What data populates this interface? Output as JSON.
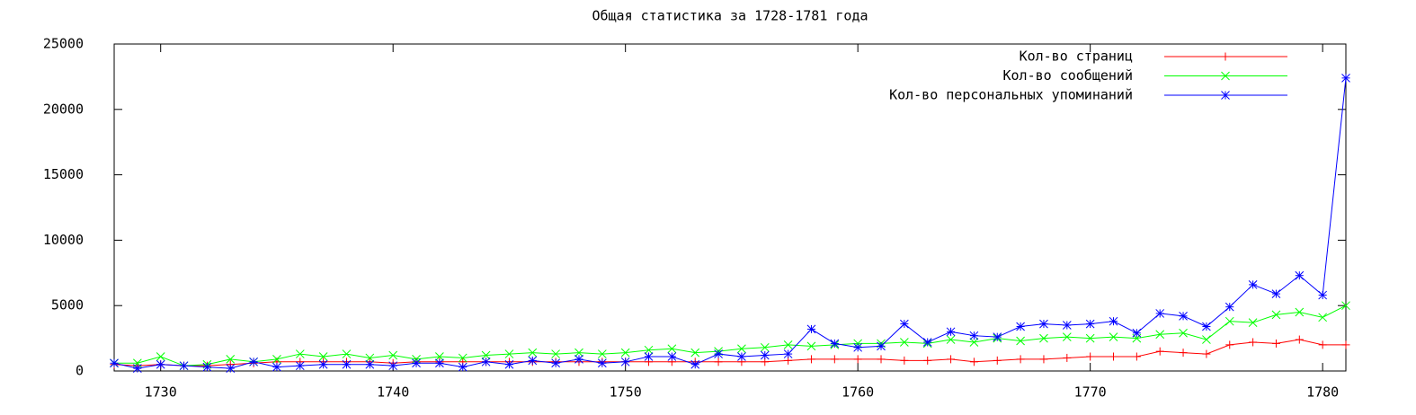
{
  "chart_data": {
    "type": "line",
    "title": "Общая статистика за 1728-1781 года",
    "x": [
      1728,
      1729,
      1730,
      1731,
      1732,
      1733,
      1734,
      1735,
      1736,
      1737,
      1738,
      1739,
      1740,
      1741,
      1742,
      1743,
      1744,
      1745,
      1746,
      1747,
      1748,
      1749,
      1750,
      1751,
      1752,
      1753,
      1754,
      1755,
      1756,
      1757,
      1758,
      1759,
      1760,
      1761,
      1762,
      1763,
      1764,
      1765,
      1766,
      1767,
      1768,
      1769,
      1770,
      1771,
      1772,
      1773,
      1774,
      1775,
      1776,
      1777,
      1778,
      1779,
      1780,
      1781
    ],
    "series": [
      {
        "name": "Кол-во страниц",
        "color": "#ff0000",
        "marker": "plus",
        "values": [
          500,
          400,
          500,
          400,
          400,
          500,
          600,
          700,
          700,
          700,
          700,
          700,
          600,
          700,
          700,
          700,
          700,
          700,
          700,
          700,
          700,
          700,
          700,
          700,
          700,
          700,
          700,
          700,
          700,
          800,
          900,
          900,
          900,
          900,
          800,
          800,
          900,
          700,
          800,
          900,
          900,
          1000,
          1100,
          1100,
          1100,
          1500,
          1400,
          1300,
          2000,
          2200,
          2100,
          2400,
          2000,
          2000
        ]
      },
      {
        "name": "Кол-во сообщений",
        "color": "#00ff00",
        "marker": "cross",
        "values": [
          600,
          600,
          1100,
          400,
          500,
          900,
          700,
          900,
          1300,
          1100,
          1300,
          1000,
          1200,
          900,
          1100,
          1000,
          1200,
          1300,
          1400,
          1300,
          1400,
          1300,
          1400,
          1600,
          1700,
          1400,
          1500,
          1700,
          1800,
          2000,
          1900,
          2000,
          2100,
          2100,
          2200,
          2100,
          2400,
          2200,
          2500,
          2300,
          2500,
          2600,
          2500,
          2600,
          2500,
          2800,
          2900,
          2400,
          3800,
          3700,
          4300,
          4500,
          4100,
          5000
        ]
      },
      {
        "name": "Кол-во персональных упоминаний",
        "color": "#0000ff",
        "marker": "star",
        "values": [
          600,
          200,
          500,
          400,
          300,
          200,
          700,
          300,
          400,
          500,
          500,
          500,
          400,
          600,
          600,
          300,
          700,
          500,
          800,
          600,
          900,
          600,
          700,
          1100,
          1100,
          500,
          1300,
          1100,
          1200,
          1300,
          3200,
          2100,
          1800,
          1900,
          3600,
          2200,
          3000,
          2700,
          2600,
          3400,
          3600,
          3500,
          3600,
          3800,
          2900,
          4400,
          4200,
          3400,
          4900,
          6600,
          5900,
          7300,
          5800,
          22400
        ]
      }
    ],
    "xlim": [
      1728,
      1781
    ],
    "xticks": [
      1730,
      1740,
      1750,
      1760,
      1770,
      1780
    ],
    "ylim": [
      0,
      25000
    ],
    "yticks": [
      0,
      5000,
      10000,
      15000,
      20000,
      25000
    ],
    "legend": "top-right"
  }
}
